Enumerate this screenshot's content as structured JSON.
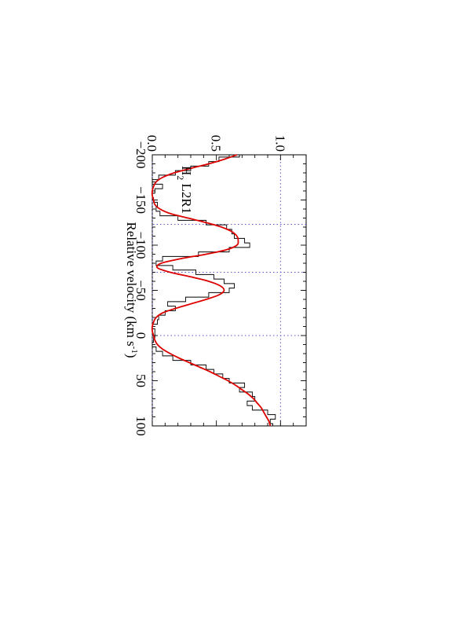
{
  "chart_data": {
    "type": "line",
    "orientation": "rotated-90-clockwise",
    "xlabel": "Relative velocity (km s",
    "xlabel_sup": "-1",
    "xlabel_end": ")",
    "ylabel": "",
    "annotation": {
      "main": "H",
      "sub": "2",
      "rest": " L2R1"
    },
    "xlim": [
      -200,
      100
    ],
    "ylim": [
      0,
      1.2
    ],
    "x_ticks": [
      -200,
      -150,
      -100,
      -50,
      0,
      50,
      100
    ],
    "x_tick_labels": [
      "−200",
      "−150",
      "−100",
      "−50",
      "0",
      "50",
      "100"
    ],
    "y_ticks": [
      0,
      0.5,
      1.0
    ],
    "y_tick_labels": [
      "0.0",
      "0.5",
      "1.0"
    ],
    "reference_levels": [
      0,
      1.0
    ],
    "component_markers": [
      -123,
      -70,
      0
    ],
    "series": [
      {
        "style": "histogram",
        "color": "#000000",
        "x": [
          -200,
          -195,
          -190,
          -185,
          -180,
          -175,
          -170,
          -165,
          -160,
          -155,
          -150,
          -145,
          -140,
          -135,
          -130,
          -125,
          -120,
          -115,
          -110,
          -105,
          -100,
          -95,
          -90,
          -85,
          -80,
          -75,
          -70,
          -65,
          -60,
          -55,
          -50,
          -45,
          -40,
          -35,
          -30,
          -25,
          -20,
          -15,
          -10,
          -5,
          0,
          5,
          10,
          15,
          20,
          25,
          30,
          35,
          40,
          45,
          50,
          55,
          60,
          65,
          70,
          75,
          80,
          85,
          90,
          95,
          100
        ],
        "y": [
          0.68,
          0.52,
          0.44,
          0.3,
          0.18,
          0.05,
          0.0,
          0.08,
          0.02,
          0.0,
          0.01,
          0.04,
          0.03,
          0.06,
          0.2,
          0.42,
          0.58,
          0.62,
          0.64,
          0.72,
          0.76,
          0.6,
          0.36,
          0.08,
          0.03,
          0.16,
          0.34,
          0.48,
          0.56,
          0.64,
          0.6,
          0.44,
          0.26,
          0.12,
          0.18,
          0.1,
          0.05,
          0.04,
          0.0,
          0.02,
          0.02,
          0.01,
          0.0,
          0.03,
          0.08,
          0.16,
          0.3,
          0.42,
          0.48,
          0.55,
          0.6,
          0.72,
          0.68,
          0.78,
          0.8,
          0.74,
          0.78,
          0.9,
          0.96,
          0.92,
          0.94
        ]
      },
      {
        "style": "line",
        "color": "#dd0000",
        "x": [
          -200,
          -195,
          -190,
          -185,
          -180,
          -175,
          -170,
          -165,
          -160,
          -155,
          -150,
          -145,
          -140,
          -135,
          -130,
          -125,
          -120,
          -115,
          -110,
          -105,
          -100,
          -95,
          -90,
          -85,
          -80,
          -75,
          -70,
          -65,
          -60,
          -55,
          -50,
          -45,
          -40,
          -35,
          -30,
          -25,
          -20,
          -15,
          -10,
          -5,
          0,
          5,
          10,
          15,
          20,
          25,
          30,
          35,
          40,
          45,
          50,
          55,
          60,
          65,
          70,
          75,
          80,
          85,
          90,
          95,
          100
        ],
        "y": [
          0.66,
          0.56,
          0.44,
          0.3,
          0.17,
          0.08,
          0.03,
          0.01,
          0.0,
          0.0,
          0.01,
          0.02,
          0.06,
          0.14,
          0.28,
          0.42,
          0.54,
          0.62,
          0.66,
          0.67,
          0.66,
          0.58,
          0.42,
          0.22,
          0.07,
          0.04,
          0.14,
          0.3,
          0.44,
          0.53,
          0.56,
          0.52,
          0.42,
          0.3,
          0.18,
          0.08,
          0.03,
          0.01,
          0.0,
          0.0,
          0.01,
          0.02,
          0.04,
          0.08,
          0.14,
          0.21,
          0.29,
          0.37,
          0.45,
          0.52,
          0.59,
          0.65,
          0.7,
          0.75,
          0.79,
          0.82,
          0.85,
          0.87,
          0.89,
          0.91,
          0.92
        ]
      }
    ]
  }
}
